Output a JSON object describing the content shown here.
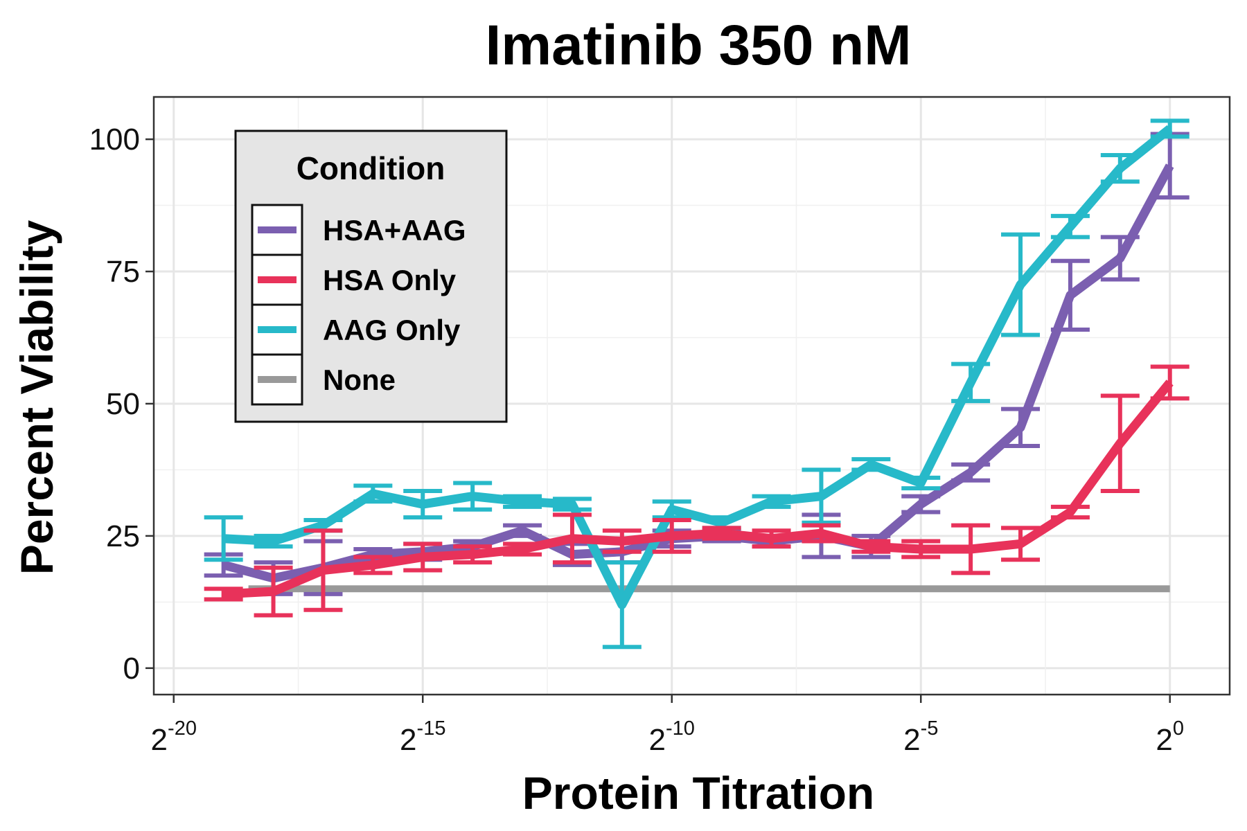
{
  "chart_data": {
    "type": "line",
    "title": "Imatinib 350 nM",
    "xlabel": "Protein Titration",
    "ylabel": "Percent Viability",
    "x_scale": "log2",
    "x_tick_exponents": [
      -20,
      -15,
      -10,
      -5,
      0
    ],
    "x_tick_base": "2",
    "xlim_log2": [
      -20.4,
      1.2
    ],
    "y_ticks": [
      0,
      25,
      50,
      75,
      100
    ],
    "ylim": [
      -5,
      108
    ],
    "grid": true,
    "legend": {
      "title": "Condition",
      "position": "top-left",
      "entries": [
        "HSA+AAG",
        "HSA Only",
        "AAG Only",
        "None"
      ]
    },
    "series": [
      {
        "name": "HSA+AAG",
        "color": "#7b5fb0",
        "x_log2": [
          -19,
          -18,
          -17,
          -16,
          -15,
          -14,
          -13,
          -12,
          -11,
          -10,
          -9,
          -8,
          -7,
          -6,
          -5,
          -4,
          -3,
          -2,
          -1,
          0
        ],
        "y": [
          19.5,
          17,
          19,
          21.5,
          22,
          23,
          26,
          21.5,
          22,
          24.5,
          25,
          24,
          25,
          23,
          31,
          37,
          45.5,
          70.5,
          77.5,
          95
        ],
        "err": [
          2,
          3,
          5,
          1,
          1.5,
          1,
          1,
          2,
          2,
          1.5,
          1,
          1,
          4,
          2,
          1.5,
          1.5,
          3.5,
          6.5,
          4,
          6
        ]
      },
      {
        "name": "HSA Only",
        "color": "#e8325a",
        "x_log2": [
          -19,
          -18,
          -17,
          -16,
          -15,
          -14,
          -13,
          -12,
          -11,
          -10,
          -9,
          -8,
          -7,
          -6,
          -5,
          -4,
          -3,
          -2,
          -1,
          0
        ],
        "y": [
          14,
          14.5,
          18.5,
          19.5,
          21,
          21.5,
          22.5,
          24.5,
          24,
          25,
          25.5,
          24.5,
          25.5,
          23,
          22.5,
          22.5,
          23.5,
          29.5,
          42.5,
          54
        ],
        "err": [
          1,
          4.5,
          7.5,
          1.5,
          2.5,
          1.5,
          1,
          4.5,
          2,
          3,
          1,
          1.5,
          1.5,
          1,
          1.5,
          4.5,
          3,
          1,
          9,
          3
        ]
      },
      {
        "name": "AAG Only",
        "color": "#27b9c9",
        "x_log2": [
          -19,
          -18,
          -17,
          -16,
          -15,
          -14,
          -13,
          -12,
          -11,
          -10,
          -9,
          -8,
          -7,
          -6,
          -5,
          -4,
          -3,
          -2,
          -1,
          0
        ],
        "y": [
          24.5,
          24,
          27,
          33,
          31,
          32.5,
          31.5,
          31,
          12,
          30,
          27.5,
          31.5,
          32.5,
          38.5,
          35,
          54,
          72.5,
          83.5,
          94.5,
          102
        ],
        "err": [
          4,
          1,
          1,
          1.5,
          2.5,
          2.5,
          1,
          1,
          8,
          1.5,
          1,
          1,
          5,
          1,
          1,
          3.5,
          9.5,
          2,
          2.5,
          1.5
        ]
      },
      {
        "name": "None",
        "color": "#999999",
        "x_log2": [
          -18.5,
          0
        ],
        "y": [
          15,
          15
        ]
      }
    ]
  }
}
